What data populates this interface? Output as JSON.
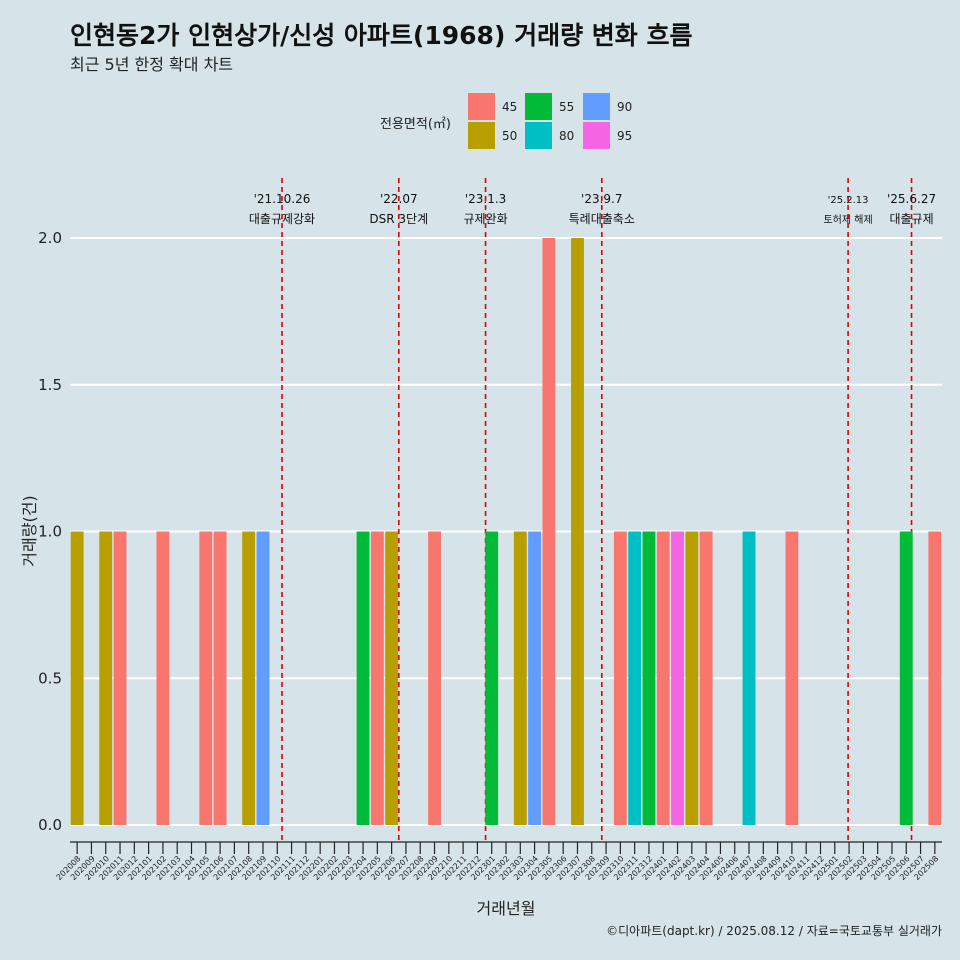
{
  "title": "인현동2가 인현상가/신성 아파트(1968) 거래량 변화 흐름",
  "subtitle": "최근 5년 한정 확대 차트",
  "caption": "©디아파트(dapt.kr) / 2025.08.12 / 자료=국토교통부 실거래가",
  "colors": {
    "background": "#d6e4ea",
    "grid": "#ffffff",
    "event_line": "#dd0000"
  },
  "chart_data": {
    "type": "bar",
    "xlabel": "거래년월",
    "ylabel": "거래량(건)",
    "ylim": [
      0,
      2.0
    ],
    "yticks": [
      0.0,
      0.5,
      1.0,
      1.5,
      2.0
    ],
    "ytick_labels": [
      "0.0",
      "0.5",
      "1.0",
      "1.5",
      "2.0"
    ],
    "grid": true,
    "legend": {
      "title": "전용면적(㎡)",
      "placement": "top",
      "entries": [
        {
          "label": "45",
          "color": "#F8766D"
        },
        {
          "label": "50",
          "color": "#B79F00"
        },
        {
          "label": "55",
          "color": "#00BA38"
        },
        {
          "label": "80",
          "color": "#00BFC4"
        },
        {
          "label": "90",
          "color": "#619CFF"
        },
        {
          "label": "95",
          "color": "#F564E3"
        }
      ]
    },
    "categories": [
      "202008",
      "202009",
      "202010",
      "202011",
      "202012",
      "202101",
      "202102",
      "202103",
      "202104",
      "202105",
      "202106",
      "202107",
      "202108",
      "202109",
      "202110",
      "202111",
      "202112",
      "202201",
      "202202",
      "202203",
      "202204",
      "202205",
      "202206",
      "202207",
      "202208",
      "202209",
      "202210",
      "202211",
      "202212",
      "202301",
      "202302",
      "202303",
      "202304",
      "202305",
      "202306",
      "202307",
      "202308",
      "202309",
      "202310",
      "202311",
      "202312",
      "202401",
      "202402",
      "202403",
      "202404",
      "202405",
      "202406",
      "202407",
      "202408",
      "202409",
      "202410",
      "202411",
      "202412",
      "202501",
      "202502",
      "202503",
      "202504",
      "202505",
      "202506",
      "202507",
      "202508"
    ],
    "bars": [
      {
        "month": "202008",
        "area": "50",
        "value": 1
      },
      {
        "month": "202010",
        "area": "50",
        "value": 1
      },
      {
        "month": "202011",
        "area": "45",
        "value": 1
      },
      {
        "month": "202102",
        "area": "45",
        "value": 1
      },
      {
        "month": "202105",
        "area": "45",
        "value": 1
      },
      {
        "month": "202106",
        "area": "45",
        "value": 1
      },
      {
        "month": "202108",
        "area": "50",
        "value": 1
      },
      {
        "month": "202109",
        "area": "90",
        "value": 1
      },
      {
        "month": "202204",
        "area": "55",
        "value": 1
      },
      {
        "month": "202205",
        "area": "45",
        "value": 1
      },
      {
        "month": "202206",
        "area": "50",
        "value": 1
      },
      {
        "month": "202209",
        "area": "45",
        "value": 1
      },
      {
        "month": "202301",
        "area": "55",
        "value": 1
      },
      {
        "month": "202303",
        "area": "50",
        "value": 1
      },
      {
        "month": "202304",
        "area": "90",
        "value": 1
      },
      {
        "month": "202305",
        "area": "45",
        "value": 2
      },
      {
        "month": "202307",
        "area": "50",
        "value": 2
      },
      {
        "month": "202310",
        "area": "45",
        "value": 1
      },
      {
        "month": "202311",
        "area": "80",
        "value": 1
      },
      {
        "month": "202312",
        "area": "55",
        "value": 1
      },
      {
        "month": "202401",
        "area": "45",
        "value": 1
      },
      {
        "month": "202402",
        "area": "95",
        "value": 1
      },
      {
        "month": "202403",
        "area": "50",
        "value": 1
      },
      {
        "month": "202404",
        "area": "45",
        "value": 1
      },
      {
        "month": "202407",
        "area": "80",
        "value": 1
      },
      {
        "month": "202410",
        "area": "45",
        "value": 1
      },
      {
        "month": "202506",
        "area": "55",
        "value": 1
      },
      {
        "month": "202508",
        "area": "45",
        "value": 1
      }
    ],
    "events": [
      {
        "date": "'21.10.26",
        "desc": "대출규제강화",
        "month": "202110",
        "day_fraction": 0.83,
        "small": false
      },
      {
        "date": "'22.07",
        "desc": "DSR 3단계",
        "month": "202207",
        "day_fraction": 0.0,
        "small": false
      },
      {
        "date": "'23.1.3",
        "desc": "규제완화",
        "month": "202301",
        "day_fraction": 0.07,
        "small": false
      },
      {
        "date": "'23.9.7",
        "desc": "특례대출축소",
        "month": "202309",
        "day_fraction": 0.2,
        "small": false
      },
      {
        "date": "'25.2.13",
        "desc": "토허제 해제",
        "month": "202502",
        "day_fraction": 0.43,
        "small": true
      },
      {
        "date": "'25.6.27",
        "desc": "대출규제",
        "month": "202506",
        "day_fraction": 0.87,
        "small": false
      }
    ]
  }
}
